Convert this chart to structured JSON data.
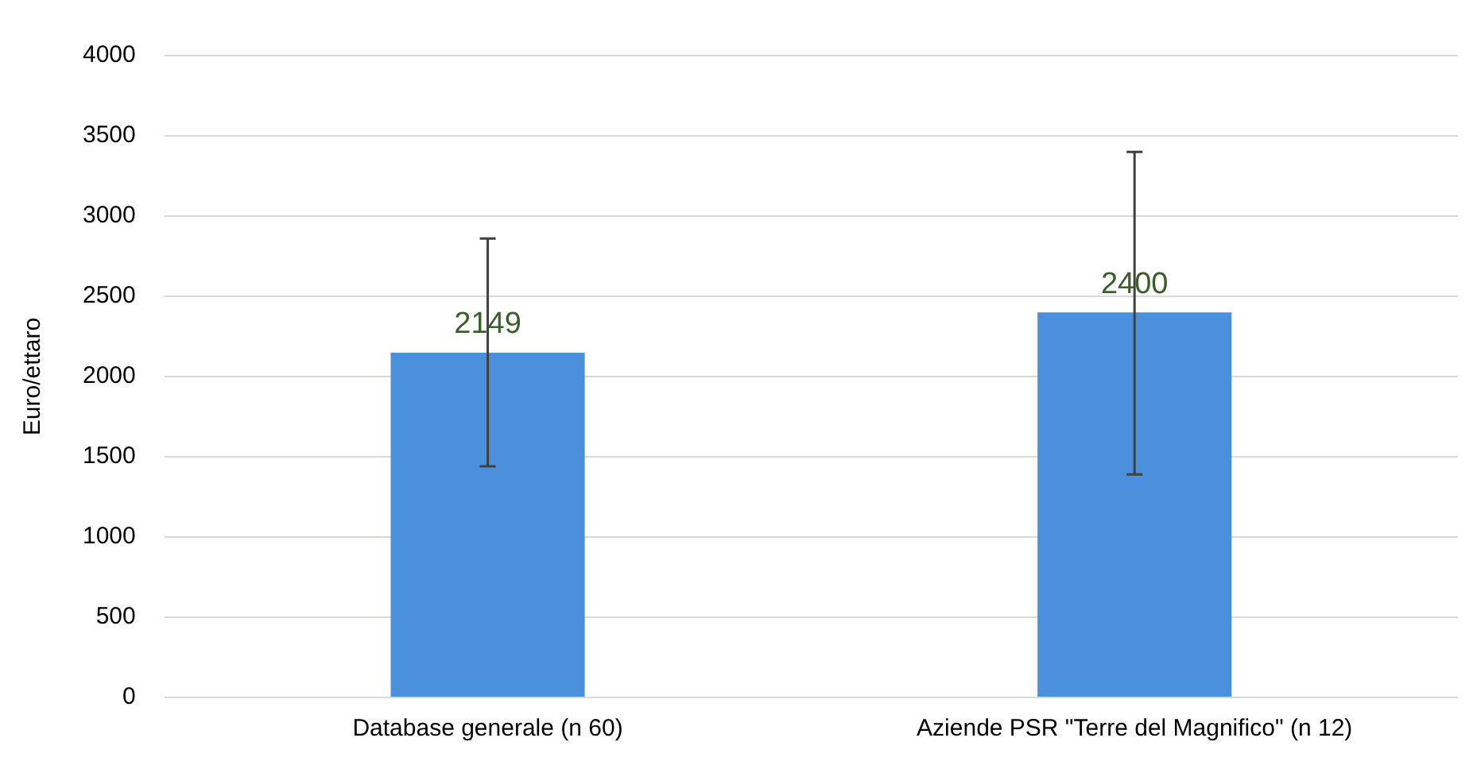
{
  "chart_data": {
    "type": "bar",
    "ylabel": "Euro/ettaro",
    "categories": [
      "Database generale (n 60)",
      "Aziende PSR \"Terre del Magnifico\" (n 12)"
    ],
    "values": [
      2149,
      2400
    ],
    "color": "#4a90dc",
    "errors": [
      [
        1440,
        2860
      ],
      [
        1390,
        3400
      ]
    ],
    "ylim": [
      0,
      4000
    ],
    "yticks": [
      0,
      500,
      1000,
      1500,
      2000,
      2500,
      3000,
      3500,
      4000
    ],
    "grid": "y",
    "data_labels": true,
    "legend": false
  }
}
